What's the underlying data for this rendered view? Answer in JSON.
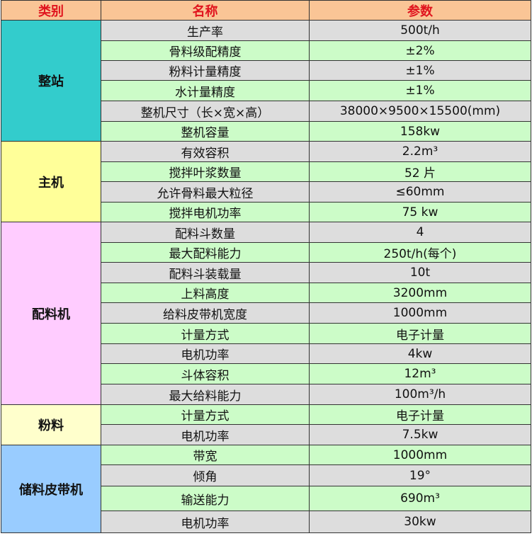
{
  "header": {
    "category": "类别",
    "name": "名称",
    "params": "参数"
  },
  "colors": {
    "header_bg": "#fac596",
    "header_text": "#e0141e",
    "row_gray": "#dddddd",
    "row_green": "#ccfcc8"
  },
  "groups": [
    {
      "category": "整站",
      "color": "#33cccc",
      "rows": [
        {
          "name": "生产率",
          "value": "500t/h"
        },
        {
          "name": "骨料级配精度",
          "value": "±2%"
        },
        {
          "name": "粉料计量精度",
          "value": "±1%"
        },
        {
          "name": "水计量精度",
          "value": "±1%"
        },
        {
          "name": "整机尺寸（长×宽×高）",
          "value": "38000×9500×15500(mm)"
        },
        {
          "name": "整机容量",
          "value": "158kw"
        }
      ]
    },
    {
      "category": "主机",
      "color": "#ffff99",
      "rows": [
        {
          "name": "有效容积",
          "value": "2.2m³"
        },
        {
          "name": "搅拌叶浆数量",
          "value": "52 片"
        },
        {
          "name": "允许骨料最大粒径",
          "value": "≤60mm"
        },
        {
          "name": "搅拌电机功率",
          "value": "75 kw"
        }
      ]
    },
    {
      "category": "配料机",
      "color": "#ffccff",
      "rows": [
        {
          "name": "配料斗数量",
          "value": "4"
        },
        {
          "name": "最大配料能力",
          "value": "250t/h(每个)"
        },
        {
          "name": "配料斗装载量",
          "value": "10t"
        },
        {
          "name": "上料高度",
          "value": "3200mm"
        },
        {
          "name": "给料皮带机宽度",
          "value": "1000mm"
        },
        {
          "name": "计量方式",
          "value": "电子计量"
        },
        {
          "name": "电机功率",
          "value": "4kw"
        },
        {
          "name": "斗体容积",
          "value": "12m³"
        },
        {
          "name": "最大给料能力",
          "value": "100m³/h"
        }
      ]
    },
    {
      "category": "粉料",
      "color": "#ffffcc",
      "rows": [
        {
          "name": "计量方式",
          "value": "电子计量"
        },
        {
          "name": "电机功率",
          "value": "7.5kw"
        }
      ]
    },
    {
      "category": "储料皮带机",
      "color": "#99ccff",
      "rows": [
        {
          "name": "带宽",
          "value": "1000mm"
        },
        {
          "name": "倾角",
          "value": "19°"
        },
        {
          "name": "输送能力",
          "value": "690m³"
        },
        {
          "name": "电机功率",
          "value": "30kw"
        }
      ]
    }
  ]
}
